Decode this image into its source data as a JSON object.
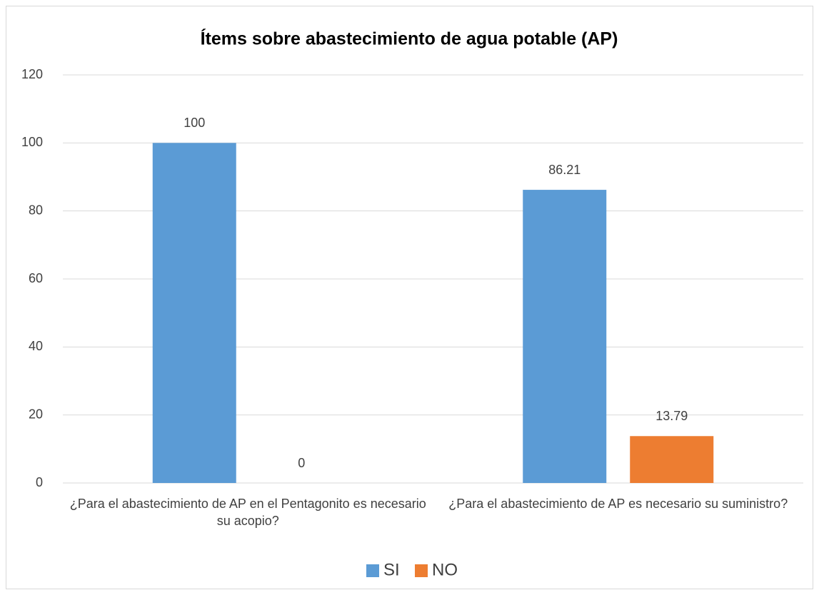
{
  "chart_data": {
    "type": "bar",
    "title": "Ítems sobre abastecimiento de agua potable (AP)",
    "categories": [
      "¿Para el abastecimiento de AP en el Pentagonito es necesario su acopio?",
      "¿Para el abastecimiento de AP es necesario su suministro?"
    ],
    "series": [
      {
        "name": "SI",
        "color": "#5b9bd5",
        "values": [
          100,
          86.21
        ]
      },
      {
        "name": "NO",
        "color": "#ed7d31",
        "values": [
          0,
          13.79
        ]
      }
    ],
    "ylim": [
      0,
      120
    ],
    "yticks": [
      0,
      20,
      40,
      60,
      80,
      100,
      120
    ],
    "grid": true,
    "legend": "bottom"
  }
}
